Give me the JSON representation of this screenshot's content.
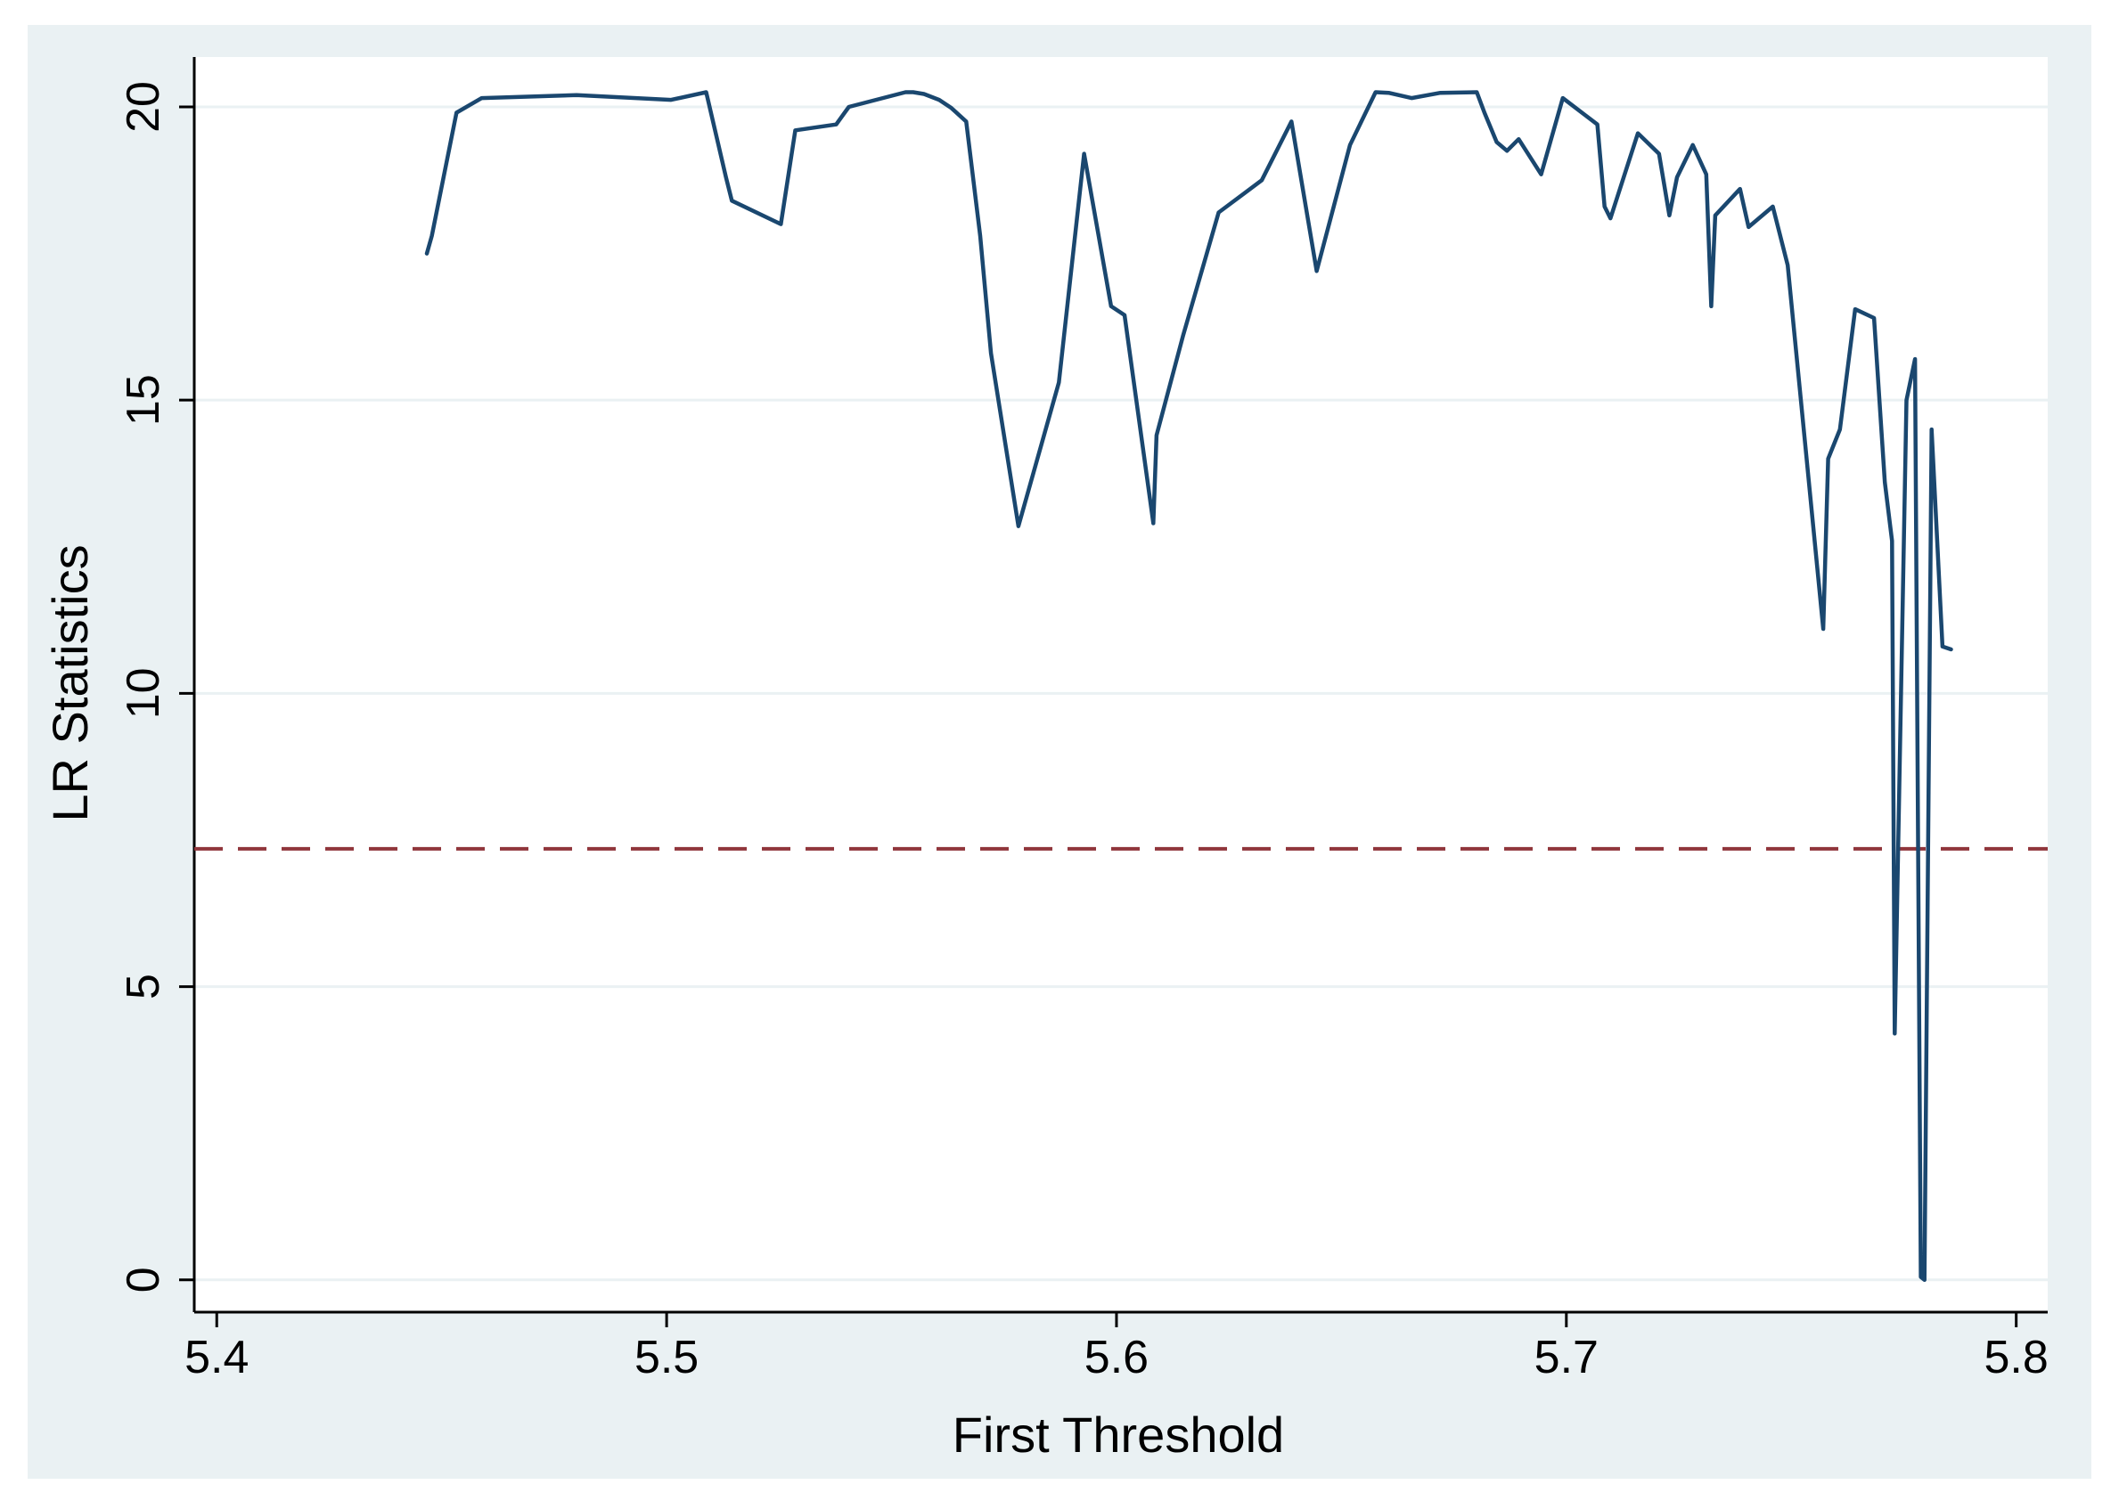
{
  "chart_data": {
    "type": "line",
    "title": "",
    "xlabel": "First Threshold",
    "ylabel": "LR Statistics",
    "xlim": [
      5.395,
      5.807
    ],
    "ylim": [
      -0.55,
      20.85
    ],
    "xticks": [
      5.4,
      5.5,
      5.6,
      5.7,
      5.8
    ],
    "xtick_labels": [
      "5.4",
      "5.5",
      "5.6",
      "5.7",
      "5.8"
    ],
    "yticks": [
      0,
      5,
      10,
      15,
      20
    ],
    "ytick_labels": [
      "0",
      "5",
      "10",
      "15",
      "20"
    ],
    "grid": "horizontal",
    "legend": "none",
    "colors": {
      "outer_background": "#eaf1f3",
      "plot_background": "#ffffff",
      "gridline": "#eaf1f3",
      "series": "#1a476f",
      "reference_line": "#90353b"
    },
    "reference_line": {
      "orientation": "horizontal",
      "y": 7.35,
      "style": "dashed"
    },
    "series": [
      {
        "x": [
          5.4467,
          5.4478,
          5.4533,
          5.4589,
          5.48,
          5.501,
          5.5088,
          5.5132,
          5.5145,
          5.5254,
          5.5286,
          5.5377,
          5.5391,
          5.5405,
          5.5531,
          5.5548,
          5.5572,
          5.5606,
          5.5633,
          5.5666,
          5.5697,
          5.5721,
          5.5782,
          5.5872,
          5.5928,
          5.5988,
          5.6018,
          5.6082,
          5.6089,
          5.6148,
          5.6227,
          5.6323,
          5.6389,
          5.6445,
          5.6519,
          5.6576,
          5.6605,
          5.6656,
          5.672,
          5.6801,
          5.6818,
          5.6845,
          5.6868,
          5.6894,
          5.6944,
          5.6992,
          5.7069,
          5.7085,
          5.7098,
          5.7159,
          5.7206,
          5.7229,
          5.7246,
          5.7281,
          5.7311,
          5.7322,
          5.7331,
          5.7386,
          5.7405,
          5.7459,
          5.7492,
          5.7571,
          5.7582,
          5.7608,
          5.7642,
          5.7684,
          5.7708,
          5.7724,
          5.773,
          5.7756,
          5.7775,
          5.7788,
          5.7796,
          5.7812,
          5.7836,
          5.7855
        ],
        "y": [
          17.5,
          17.8,
          19.9,
          20.15,
          20.2,
          20.12,
          20.25,
          18.8,
          18.4,
          18.0,
          19.6,
          19.7,
          19.85,
          20.0,
          20.25,
          20.25,
          20.22,
          20.12,
          19.98,
          19.75,
          17.8,
          15.8,
          12.85,
          15.3,
          19.2,
          16.6,
          16.45,
          12.9,
          14.4,
          16.1,
          18.2,
          18.75,
          19.75,
          17.2,
          19.35,
          20.25,
          20.24,
          20.15,
          20.24,
          20.25,
          19.9,
          19.4,
          19.25,
          19.45,
          18.85,
          20.15,
          19.7,
          18.3,
          18.1,
          19.55,
          19.2,
          18.15,
          18.8,
          19.35,
          18.85,
          16.6,
          18.15,
          18.6,
          17.95,
          18.3,
          17.3,
          11.1,
          14.0,
          14.5,
          16.55,
          16.4,
          13.6,
          12.6,
          4.2,
          15.0,
          15.7,
          0.05,
          0.0,
          14.5,
          10.8,
          10.75
        ]
      }
    ]
  }
}
